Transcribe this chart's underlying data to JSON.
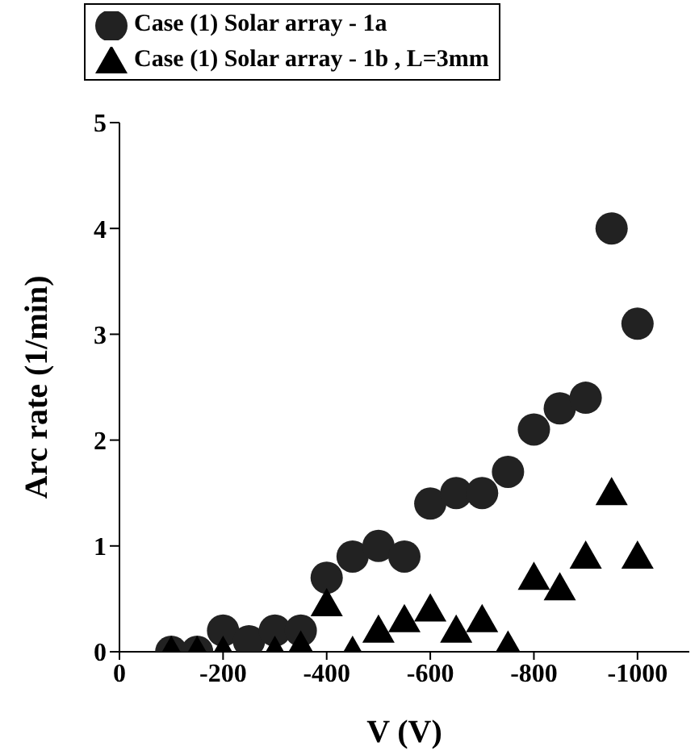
{
  "chart_data": {
    "type": "scatter",
    "xlabel": "V (V)",
    "ylabel": "Arc rate (1/min)",
    "xlim": [
      0,
      -1100
    ],
    "xticks": [
      0,
      -200,
      -400,
      -600,
      -800,
      -1000
    ],
    "ylim": [
      0,
      5
    ],
    "yticks": [
      0,
      1,
      2,
      3,
      4,
      5
    ],
    "grid": false,
    "legend": "top",
    "series": [
      {
        "name": "Case (1) Solar array - 1a",
        "color": "#222222",
        "marker": "circle",
        "x": [
          -100,
          -150,
          -200,
          -250,
          -300,
          -350,
          -400,
          -450,
          -500,
          -550,
          -600,
          -650,
          -700,
          -750,
          -800,
          -850,
          -900,
          -950,
          -1000
        ],
        "values": [
          0,
          0,
          0.2,
          0.1,
          0.2,
          0.2,
          0.7,
          0.9,
          1.0,
          0.9,
          1.4,
          1.5,
          1.5,
          1.7,
          2.1,
          2.3,
          2.4,
          4.0,
          3.1
        ]
      },
      {
        "name": "Case (1) Solar array - 1b , L=3mm",
        "color": "#000000",
        "marker": "triangle",
        "x": [
          -100,
          -150,
          -200,
          -300,
          -350,
          -400,
          -450,
          -500,
          -550,
          -600,
          -650,
          -700,
          -750,
          -800,
          -850,
          -900,
          -950,
          -1000
        ],
        "values": [
          0,
          0,
          0,
          0,
          0.05,
          0.45,
          0,
          0.2,
          0.3,
          0.4,
          0.2,
          0.3,
          0.05,
          0.7,
          0.6,
          0.9,
          1.5,
          0.9
        ]
      }
    ]
  }
}
